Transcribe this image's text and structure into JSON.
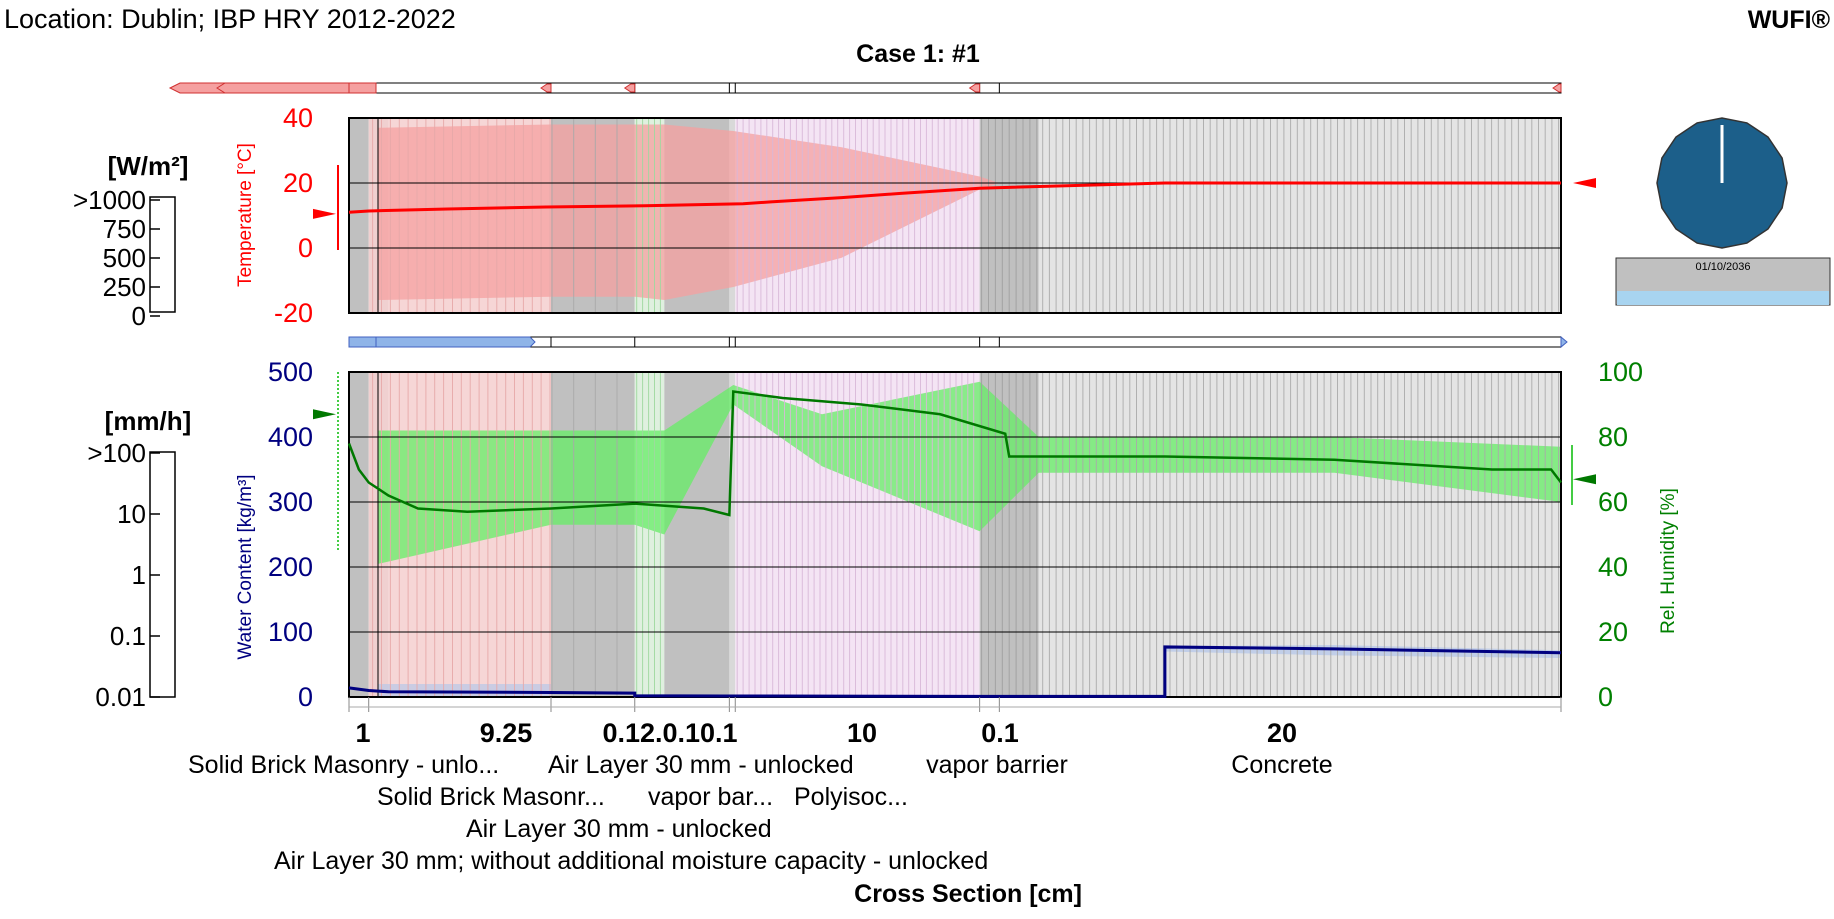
{
  "header": {
    "location": "Location: Dublin; IBP HRY 2012-2022",
    "brand": "WUFI®",
    "case_title": "Case 1: #1"
  },
  "colors": {
    "temperature": "#ff0000",
    "temperature_band": "#f5a0a0",
    "water_content": "#000080",
    "water_band": "#b8c8e8",
    "rel_humidity": "#008000",
    "rh_band": "#66ee66",
    "layer_gray": "#c0c0c0",
    "clock_face": "#1c5f8a",
    "date_bar": "#a8d4f0"
  },
  "legend_heat_flux": {
    "unit": "[W/m²]",
    "ticks": [
      ">1000",
      "750",
      "500",
      "250",
      "0"
    ]
  },
  "legend_rain": {
    "unit": "[mm/h]",
    "ticks": [
      ">100",
      "10",
      "1",
      "0.1",
      "0.01"
    ]
  },
  "clock": {
    "date": "01/10/2036"
  },
  "chart_data": [
    {
      "type": "line",
      "ylabel": "Temperature [°C]",
      "ylim": [
        -20,
        40
      ],
      "yticks": [
        "40",
        "20",
        "0",
        "-20"
      ],
      "series": [
        {
          "x": [
            0,
            1,
            5,
            10,
            15,
            20,
            21.4,
            25,
            28,
            32,
            41.4,
            50,
            61.5
          ],
          "values": [
            11,
            11.4,
            12,
            12.6,
            13,
            13.6,
            14.2,
            15.5,
            16.8,
            18.4,
            20,
            20,
            20
          ]
        }
      ],
      "surface_temp_exterior": 10.5,
      "surface_temp_interior": 20
    },
    {
      "type": "line",
      "xlabel": "Cross Section [cm]",
      "ylabel": "Water Content [kg/m³]",
      "ylim": [
        0,
        500
      ],
      "yticks": [
        "500",
        "400",
        "300",
        "200",
        "100",
        "0"
      ],
      "y2label": "Rel. Humidity [%]",
      "y2lim": [
        0,
        100
      ],
      "y2ticks": [
        "100",
        "80",
        "60",
        "40",
        "20",
        "0"
      ],
      "series": [
        {
          "x": [
            0,
            1,
            2,
            10.25,
            14.5,
            14.5,
            19,
            21.4,
            32,
            32.5,
            33,
            41.4,
            41.4,
            50,
            61.5
          ],
          "values": [
            14,
            10,
            8,
            7,
            6,
            2,
            1.5,
            1.5,
            1,
            1,
            1,
            1,
            77,
            74,
            68
          ]
        },
        {
          "x": [
            0,
            0.5,
            1,
            2,
            3.5,
            6,
            10.25,
            14.5,
            18,
            19.3,
            19.5,
            22,
            26,
            30,
            33.3,
            33.5,
            41.4,
            50,
            58,
            61,
            61.5
          ],
          "values": [
            78,
            70,
            66,
            62,
            58,
            57,
            58,
            59.5,
            58,
            56,
            94,
            92,
            90,
            87,
            81,
            74,
            74,
            73,
            70,
            70,
            66
          ]
        }
      ],
      "x_tick_labels": [
        "1",
        "9.25",
        "0.12.0.10.1",
        "10",
        "0.1",
        "20"
      ],
      "rh_exterior": 87,
      "rh_interior": 67
    }
  ],
  "layers": {
    "row1": [
      "Solid Brick Masonry - unlo...",
      "Air Layer 30 mm - unlocked",
      "vapor barrier",
      "Concrete"
    ],
    "row2": [
      "Solid Brick Masonr...",
      "vapor bar...",
      "Polyisoc..."
    ],
    "row3": "Air Layer 30 mm - unlocked",
    "row4": "Air Layer 30 mm; without additional moisture capacity - unlocked"
  }
}
